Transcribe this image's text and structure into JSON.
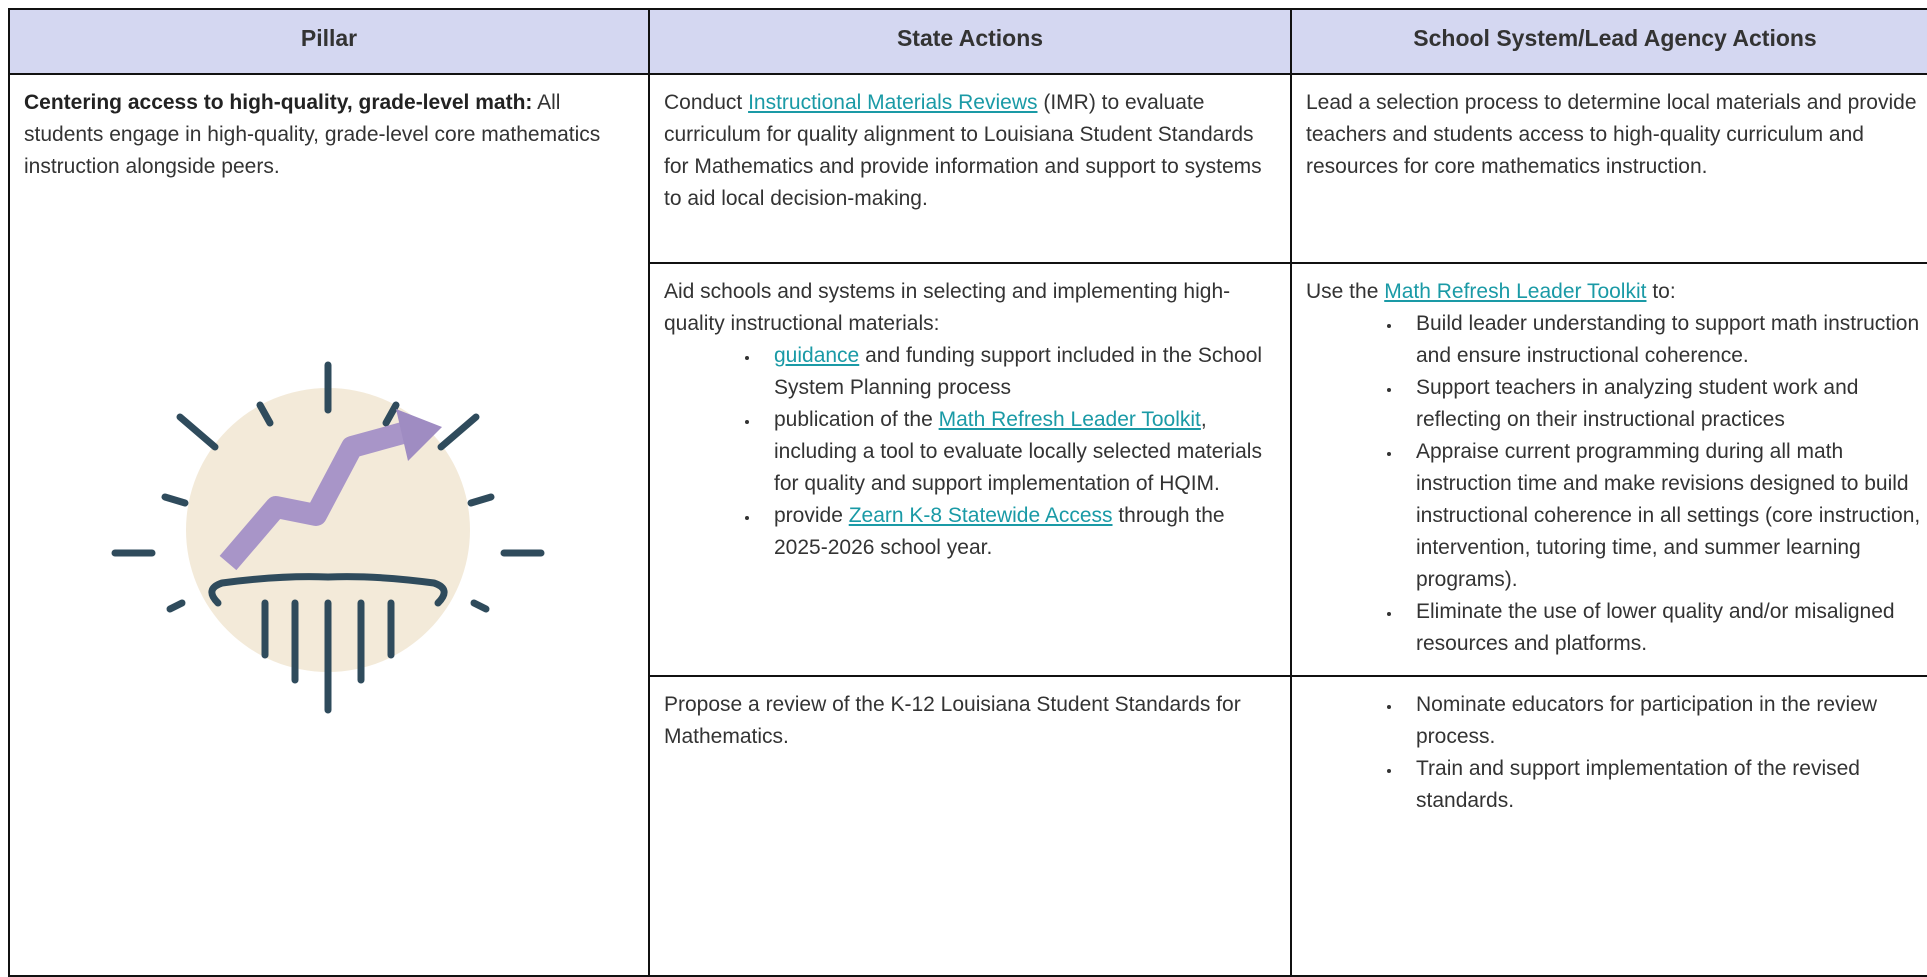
{
  "table": {
    "headers": [
      "Pillar",
      "State Actions",
      "School System/Lead Agency Actions"
    ],
    "pillar": [
      {
        "text": "Centering access to high-quality, grade-level math:",
        "bold": true
      },
      {
        "text": " All students engage in high-quality, grade-level core mathematics instruction alongside peers."
      }
    ],
    "rows": [
      {
        "state": {
          "intro": [
            {
              "text": "Conduct "
            },
            {
              "text": "Instructional Materials Reviews",
              "link": true
            },
            {
              "text": " (IMR) to evaluate curriculum for quality alignment to Louisiana Student Standards for Mathematics and provide information and support to systems to aid local decision-making."
            }
          ]
        },
        "school": {
          "intro": [
            {
              "text": "Lead a selection process to determine local materials and provide teachers and students access to high-quality curriculum and resources for core mathematics instruction."
            }
          ]
        }
      },
      {
        "state": {
          "intro": [
            {
              "text": "Aid schools and systems in selecting and implementing high-quality instructional materials:"
            }
          ],
          "bullets": [
            [
              {
                "text": "guidance",
                "link": true
              },
              {
                "text": " and funding support included in the School System Planning process"
              }
            ],
            [
              {
                "text": "publication of the "
              },
              {
                "text": "Math Refresh Leader Toolkit",
                "link": true
              },
              {
                "text": ", including a tool to evaluate locally selected materials for quality and support implementation of HQIM."
              }
            ],
            [
              {
                "text": "provide "
              },
              {
                "text": "Zearn K-8 Statewide Access",
                "link": true
              },
              {
                "text": " through the 2025-2026 school year."
              }
            ]
          ]
        },
        "school": {
          "intro": [
            {
              "text": "Use the "
            },
            {
              "text": "Math Refresh Leader Toolkit",
              "link": true
            },
            {
              "text": " to:"
            }
          ],
          "bullets": [
            [
              {
                "text": "Build leader understanding to support math instruction and ensure instructional coherence."
              }
            ],
            [
              {
                "text": "Support teachers in analyzing student work and reflecting on their instructional practices"
              }
            ],
            [
              {
                "text": "Appraise current programming during all math instruction time and make revisions designed to build instructional coherence in all settings (core instruction, intervention, tutoring time, and summer learning programs)."
              }
            ],
            [
              {
                "text": "Eliminate the use of lower quality and/or misaligned resources and platforms."
              }
            ]
          ]
        }
      },
      {
        "state": {
          "intro": [
            {
              "text": "Propose a review of the K-12 Louisiana Student Standards for Mathematics."
            }
          ]
        },
        "school": {
          "bullets": [
            [
              {
                "text": "Nominate educators for participation in the review process."
              }
            ],
            [
              {
                "text": "Train and support implementation of the revised standards."
              }
            ]
          ]
        }
      }
    ]
  }
}
